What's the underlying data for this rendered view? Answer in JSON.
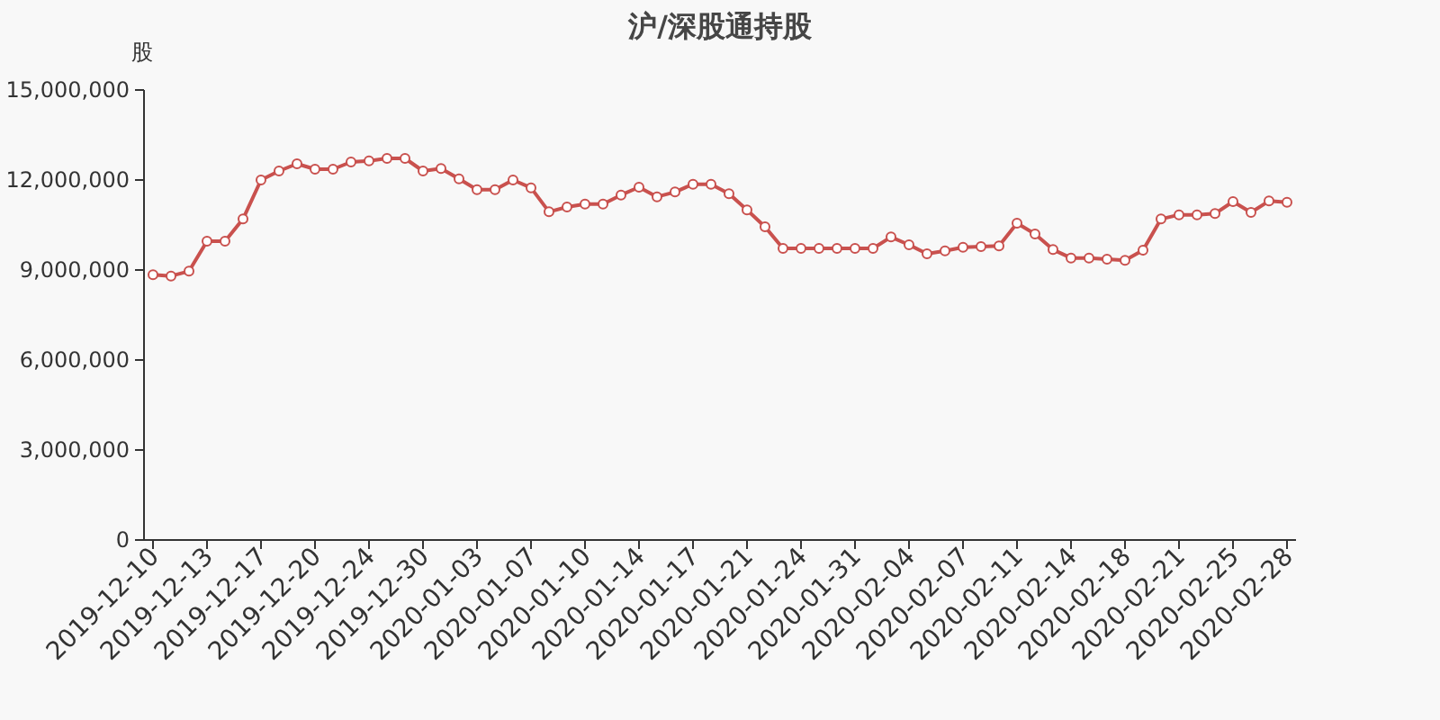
{
  "chart_data": {
    "type": "line",
    "title": "沪/深股通持股",
    "ylabel": "股",
    "categories": [
      "2019-12-10",
      null,
      null,
      "2019-12-13",
      null,
      null,
      "2019-12-17",
      null,
      null,
      "2019-12-20",
      null,
      null,
      "2019-12-24",
      null,
      null,
      "2019-12-30",
      null,
      null,
      "2020-01-03",
      null,
      null,
      "2020-01-07",
      null,
      null,
      "2020-01-10",
      null,
      null,
      "2020-01-14",
      null,
      null,
      "2020-01-17",
      null,
      null,
      "2020-01-21",
      null,
      null,
      "2020-01-24",
      null,
      null,
      "2020-01-31",
      null,
      null,
      "2020-02-04",
      null,
      null,
      "2020-02-07",
      null,
      null,
      "2020-02-11",
      null,
      null,
      "2020-02-14",
      null,
      null,
      "2020-02-18",
      null,
      null,
      "2020-02-21",
      null,
      null,
      "2020-02-25",
      null,
      null,
      "2020-02-28"
    ],
    "series": [
      {
        "color": "#c9514e",
        "values": [
          8840000,
          8800000,
          8960000,
          9960000,
          9960000,
          10700000,
          12000000,
          12300000,
          12540000,
          12360000,
          12360000,
          12600000,
          12640000,
          12720000,
          12720000,
          12300000,
          12380000,
          12040000,
          11680000,
          11680000,
          12000000,
          11740000,
          10940000,
          11100000,
          11200000,
          11200000,
          11500000,
          11760000,
          11440000,
          11600000,
          11860000,
          11860000,
          11540000,
          11000000,
          10440000,
          9720000,
          9720000,
          9720000,
          9720000,
          9720000,
          9720000,
          10100000,
          9840000,
          9540000,
          9640000,
          9760000,
          9780000,
          9800000,
          10560000,
          10200000,
          9680000,
          9400000,
          9400000,
          9360000,
          9320000,
          9660000,
          10700000,
          10840000,
          10840000,
          10880000,
          11280000,
          10920000,
          11300000,
          11260000
        ]
      }
    ],
    "ylim": [
      0,
      15000000
    ],
    "yticks": [
      {
        "value": 0,
        "label": "0"
      },
      {
        "value": 3000000,
        "label": "3,000,000"
      },
      {
        "value": 6000000,
        "label": "6,000,000"
      },
      {
        "value": 9000000,
        "label": "9,000,000"
      },
      {
        "value": 12000000,
        "label": "12,000,000"
      },
      {
        "value": 15000000,
        "label": "15,000,000"
      }
    ],
    "grid": false,
    "marker": "circle",
    "line_style": "solid"
  }
}
